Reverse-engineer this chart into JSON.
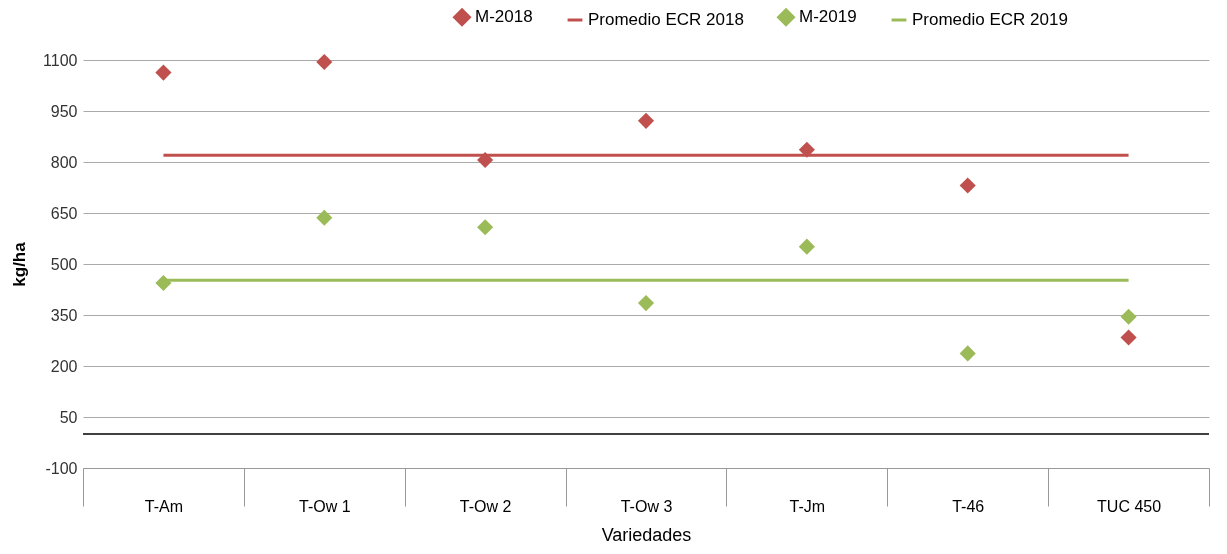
{
  "chart_data": {
    "type": "scatter",
    "xlabel": "Variedades",
    "ylabel": "kg/ha",
    "categories": [
      "T-Am",
      "T-Ow 1",
      "T-Ow 2",
      "T-Ow 3",
      "T-Jm",
      "T-46",
      "TUC 450"
    ],
    "series": [
      {
        "name": "M-2018",
        "color": "#c0504d",
        "values": [
          1063,
          1094,
          806,
          921,
          836,
          731,
          284
        ]
      },
      {
        "name": "Promedio ECR 2018",
        "type": "line",
        "marker": "none",
        "color": "#c0504d",
        "values": [
          820,
          820,
          820,
          820,
          820,
          820,
          820
        ]
      },
      {
        "name": "M-2019",
        "color": "#9bbb59",
        "values": [
          444,
          636,
          608,
          385,
          551,
          237,
          345
        ]
      },
      {
        "name": "Promedio ECR 2019",
        "type": "line",
        "marker": "none",
        "color": "#9bbb59",
        "values": [
          452,
          452,
          452,
          452,
          452,
          452,
          452
        ]
      }
    ],
    "ylim": [
      -100,
      1100
    ],
    "yticks": [
      -100,
      50,
      200,
      350,
      500,
      650,
      800,
      950,
      1100
    ],
    "ref_lines": [
      {
        "axis": "y",
        "value": 0,
        "color": "#000000"
      }
    ],
    "grid": "y",
    "legend": "top right",
    "marker": "diamond",
    "line_style": "solid"
  }
}
